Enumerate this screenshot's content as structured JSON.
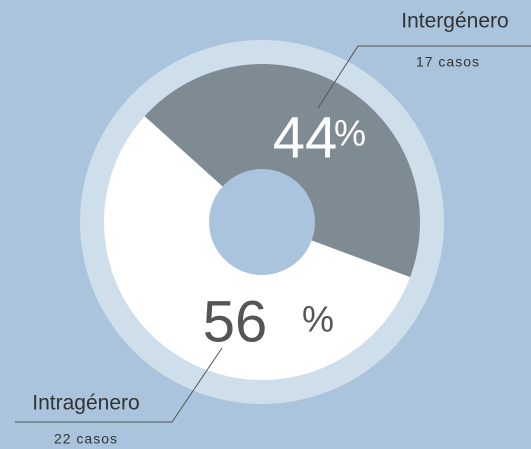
{
  "chart_data": {
    "type": "donut",
    "categories": [
      "Intergénero",
      "Intragénero"
    ],
    "values": [
      44,
      56
    ],
    "unit": "%",
    "count_labels": [
      "17 casos",
      "22 casos"
    ],
    "colors": [
      "#7f8b93",
      "#ffffff"
    ]
  }
}
